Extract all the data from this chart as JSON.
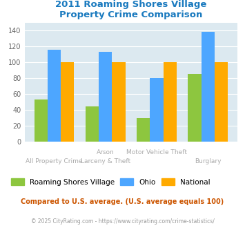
{
  "title": "2011 Roaming Shores Village\nProperty Crime Comparison",
  "xlabel_row1": [
    "All Property Crime",
    "Arson",
    "Motor Vehicle Theft",
    "Burglary"
  ],
  "xlabel_row2": [
    "",
    "Larceny & Theft",
    "",
    ""
  ],
  "village_values": [
    53,
    44,
    29,
    85
  ],
  "ohio_values": [
    116,
    113,
    80,
    139
  ],
  "national_values": [
    100,
    100,
    100,
    100
  ],
  "village_color": "#8dc63f",
  "ohio_color": "#4da6ff",
  "national_color": "#ffaa00",
  "title_color": "#1a7abf",
  "bg_color": "#dce9f0",
  "ylim": [
    0,
    150
  ],
  "yticks": [
    0,
    20,
    40,
    60,
    80,
    100,
    120,
    140
  ],
  "legend_labels": [
    "Roaming Shores Village",
    "Ohio",
    "National"
  ],
  "footnote1": "Compared to U.S. average. (U.S. average equals 100)",
  "footnote2": "© 2025 CityRating.com - https://www.cityrating.com/crime-statistics/",
  "footnote1_color": "#cc5500",
  "footnote2_color": "#999999",
  "xlabel_color": "#aaaaaa",
  "bar_width": 0.26
}
